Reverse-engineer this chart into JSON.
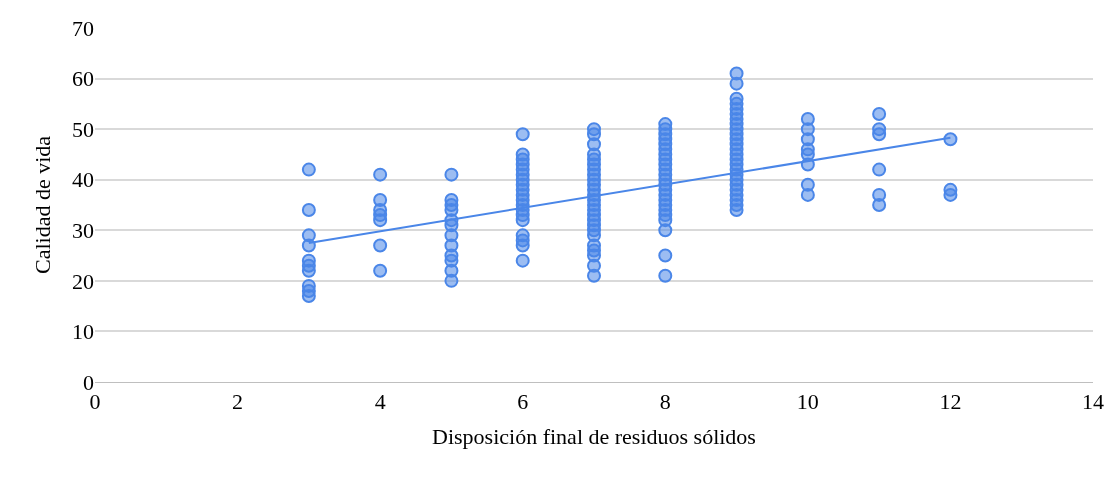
{
  "chart_data": {
    "type": "scatter",
    "xlabel": "Disposición final de residuos sólidos",
    "ylabel": "Calidad de vida",
    "xlim": [
      0,
      14
    ],
    "xticks": [
      0,
      2,
      4,
      6,
      8,
      10,
      12,
      14
    ],
    "ylim": [
      0,
      70
    ],
    "yticks": [
      0,
      10,
      20,
      30,
      40,
      50,
      60,
      70
    ],
    "grid": "y",
    "series": [
      {
        "marker": "circle",
        "color": "#4a86e8",
        "x": [
          3,
          3,
          3,
          3,
          3,
          3,
          3,
          3,
          3,
          3,
          4,
          4,
          4,
          4,
          4,
          4,
          4,
          5,
          5,
          5,
          5,
          5,
          5,
          5,
          5,
          5,
          5,
          5,
          5,
          6,
          6,
          6,
          6,
          6,
          6,
          6,
          6,
          6,
          6,
          6,
          6,
          6,
          6,
          6,
          6,
          6,
          6,
          6,
          7,
          7,
          7,
          7,
          7,
          7,
          7,
          7,
          7,
          7,
          7,
          7,
          7,
          7,
          7,
          7,
          7,
          7,
          7,
          7,
          7,
          7,
          7,
          7,
          7,
          8,
          8,
          8,
          8,
          8,
          8,
          8,
          8,
          8,
          8,
          8,
          8,
          8,
          8,
          8,
          8,
          8,
          8,
          8,
          8,
          8,
          8,
          8,
          9,
          9,
          9,
          9,
          9,
          9,
          9,
          9,
          9,
          9,
          9,
          9,
          9,
          9,
          9,
          9,
          9,
          9,
          9,
          9,
          9,
          9,
          9,
          9,
          9,
          10,
          10,
          10,
          10,
          10,
          10,
          10,
          10,
          11,
          11,
          11,
          11,
          11,
          11,
          12,
          12,
          12
        ],
        "values": [
          42,
          34,
          29,
          27,
          24,
          23,
          22,
          19,
          18,
          17,
          41,
          36,
          34,
          33,
          32,
          27,
          22,
          41,
          36,
          35,
          34,
          32,
          31,
          29,
          27,
          25,
          24,
          22,
          20,
          49,
          45,
          44,
          43,
          42,
          41,
          40,
          39,
          38,
          37,
          36,
          35,
          34,
          33,
          32,
          29,
          28,
          27,
          24,
          50,
          49,
          47,
          45,
          44,
          43,
          42,
          41,
          40,
          39,
          38,
          37,
          36,
          35,
          34,
          33,
          32,
          31,
          30,
          29,
          27,
          26,
          25,
          23,
          21,
          51,
          50,
          49,
          48,
          47,
          46,
          45,
          44,
          43,
          42,
          41,
          40,
          39,
          38,
          37,
          36,
          35,
          34,
          33,
          32,
          30,
          25,
          21,
          61,
          59,
          56,
          55,
          54,
          53,
          52,
          51,
          50,
          49,
          48,
          47,
          46,
          45,
          44,
          43,
          42,
          41,
          40,
          39,
          38,
          37,
          36,
          35,
          34,
          52,
          50,
          48,
          46,
          45,
          43,
          39,
          37,
          53,
          50,
          49,
          42,
          37,
          35,
          48,
          38,
          37
        ]
      },
      {
        "type": "line",
        "marker": "none",
        "color": "#4a86e8",
        "x": [
          3,
          12
        ],
        "values": [
          27.5,
          48.3
        ]
      }
    ]
  }
}
